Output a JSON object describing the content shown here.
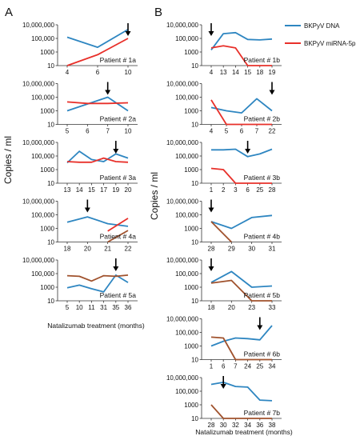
{
  "panels": [
    {
      "letter": "A",
      "ylabel": "Copies / ml",
      "xlabel": "Natalizumab treatment (months)"
    },
    {
      "letter": "B",
      "ylabel": "Copies / ml",
      "xlabel": "Natalizumab treatment (months)"
    }
  ],
  "legend": [
    {
      "name": "BKPyV DNA",
      "color": "#2e86c1"
    },
    {
      "name": "BKPyV miRNA-5p",
      "color": "#e8302a"
    }
  ],
  "colors": {
    "dna": "#2e86c1",
    "mirna": "#e8302a",
    "mirna_alt": "#a0522d",
    "arrow": "#000000"
  },
  "yticks": [
    "10,000,000",
    "100,000",
    "1000",
    "10"
  ],
  "chart_data": [
    {
      "type": "line",
      "col": 0,
      "row": 0,
      "label": "Patient # 1a",
      "categories": [
        "4",
        "6",
        "10"
      ],
      "series": [
        {
          "key": "dna",
          "name": "BKPyV DNA",
          "values": [
            150000,
            5000,
            2000000
          ]
        },
        {
          "key": "mirna",
          "name": "BKPyV miRNA-5p",
          "values": [
            10,
            400,
            100000
          ]
        }
      ],
      "arrow_index": 2,
      "ylim": [
        10,
        10000000
      ],
      "yscale": "log"
    },
    {
      "type": "line",
      "col": 0,
      "row": 1,
      "label": "Patient # 2a",
      "categories": [
        "5",
        "6",
        "7",
        "10"
      ],
      "series": [
        {
          "key": "dna",
          "name": "BKPyV DNA",
          "values": [
            1000,
            10000,
            100000,
            1000
          ]
        },
        {
          "key": "mirna",
          "name": "BKPyV miRNA-5p",
          "values": [
            20000,
            12000,
            12000,
            15000
          ]
        }
      ],
      "arrow_index": 2,
      "ylim": [
        10,
        10000000
      ],
      "yscale": "log"
    },
    {
      "type": "line",
      "col": 0,
      "row": 2,
      "label": "Patient # 3a",
      "categories": [
        "13",
        "14",
        "15",
        "17",
        "19",
        "20"
      ],
      "series": [
        {
          "key": "dna",
          "name": "BKPyV DNA",
          "values": [
            10000,
            500000,
            30000,
            15000,
            200000,
            50000
          ]
        },
        {
          "key": "mirna",
          "name": "BKPyV miRNA-5p",
          "values": [
            15000,
            12000,
            12000,
            50000,
            15000,
            12000
          ]
        }
      ],
      "arrow_index": 4,
      "ylim": [
        10,
        10000000
      ],
      "yscale": "log"
    },
    {
      "type": "line",
      "col": 0,
      "row": 3,
      "label": "Patient # 4a",
      "categories": [
        "18",
        "20",
        "21",
        "22"
      ],
      "series": [
        {
          "key": "dna",
          "name": "BKPyV DNA",
          "values": [
            8000,
            50000,
            5000,
            2000
          ]
        },
        {
          "key": "mirna_alt",
          "name": "BKPyV miRNA-5p",
          "values": [
            null,
            null,
            10,
            500
          ]
        },
        {
          "key": "mirna",
          "name": "BKPyV miRNA-5p",
          "values": [
            null,
            null,
            400,
            30000
          ]
        }
      ],
      "arrow_index": 1,
      "ylim": [
        10,
        10000000
      ],
      "yscale": "log"
    },
    {
      "type": "line",
      "col": 0,
      "row": 4,
      "label": "Patient # 5a",
      "categories": [
        "5",
        "10",
        "11",
        "31",
        "35",
        "36"
      ],
      "series": [
        {
          "key": "dna",
          "name": "BKPyV DNA",
          "values": [
            800,
            2000,
            600,
            200,
            60000,
            5000
          ]
        },
        {
          "key": "mirna_alt",
          "name": "BKPyV miRNA-5p",
          "values": [
            50000,
            40000,
            8000,
            50000,
            40000,
            60000
          ]
        }
      ],
      "arrow_index": 4,
      "ylim": [
        10,
        10000000
      ],
      "yscale": "log"
    },
    {
      "type": "line",
      "col": 1,
      "row": 0,
      "label": "Patient # 1b",
      "categories": [
        "4",
        "13",
        "14",
        "15",
        "18",
        "19"
      ],
      "series": [
        {
          "key": "dna",
          "name": "BKPyV DNA",
          "values": [
            2000,
            500000,
            700000,
            70000,
            60000,
            80000
          ]
        },
        {
          "key": "mirna",
          "name": "BKPyV miRNA-5p",
          "values": [
            4000,
            8000,
            4000,
            10,
            10,
            10
          ]
        }
      ],
      "arrow_index": 0,
      "ylim": [
        10,
        10000000
      ],
      "yscale": "log"
    },
    {
      "type": "line",
      "col": 1,
      "row": 1,
      "label": "Patient # 2b",
      "categories": [
        "4",
        "5",
        "6",
        "7",
        "22"
      ],
      "series": [
        {
          "key": "dna",
          "name": "BKPyV DNA",
          "values": [
            3000,
            1000,
            500,
            60000,
            1000
          ]
        },
        {
          "key": "mirna",
          "name": "BKPyV miRNA-5p",
          "values": [
            40000,
            10,
            10,
            10,
            10
          ]
        }
      ],
      "arrow_index": 4,
      "ylim": [
        10,
        10000000
      ],
      "yscale": "log"
    },
    {
      "type": "line",
      "col": 1,
      "row": 2,
      "label": "Patient # 3b",
      "categories": [
        "1",
        "2",
        "3",
        "6",
        "25",
        "28"
      ],
      "series": [
        {
          "key": "dna",
          "name": "BKPyV DNA",
          "values": [
            800000,
            800000,
            1000000,
            80000,
            200000,
            1000000
          ]
        },
        {
          "key": "mirna",
          "name": "BKPyV miRNA-5p",
          "values": [
            1500,
            1000,
            10,
            10,
            10,
            10
          ]
        }
      ],
      "arrow_index": 3,
      "ylim": [
        10,
        10000000
      ],
      "yscale": "log"
    },
    {
      "type": "line",
      "col": 1,
      "row": 3,
      "label": "Patient # 4b",
      "categories": [
        "28",
        "29",
        "30",
        "31"
      ],
      "series": [
        {
          "key": "dna",
          "name": "BKPyV DNA",
          "values": [
            10000,
            1000,
            40000,
            80000
          ]
        },
        {
          "key": "mirna_alt",
          "name": "BKPyV miRNA-5p",
          "values": [
            10000,
            10,
            null,
            null
          ]
        }
      ],
      "arrow_index": 0,
      "ylim": [
        10,
        10000000
      ],
      "yscale": "log"
    },
    {
      "type": "line",
      "col": 1,
      "row": 4,
      "label": "Patient # 5b",
      "categories": [
        "18",
        "20",
        "23",
        "33"
      ],
      "series": [
        {
          "key": "dna",
          "name": "BKPyV DNA",
          "values": [
            5000,
            200000,
            1000,
            1500
          ]
        },
        {
          "key": "mirna_alt",
          "name": "BKPyV miRNA-5p",
          "values": [
            4000,
            10000,
            10,
            10
          ]
        }
      ],
      "arrow_index": 0,
      "ylim": [
        10,
        10000000
      ],
      "yscale": "log"
    },
    {
      "type": "line",
      "col": 1,
      "row": 5,
      "label": "Patient # 6b",
      "categories": [
        "1",
        "6",
        "7",
        "24",
        "25",
        "34"
      ],
      "series": [
        {
          "key": "dna",
          "name": "BKPyV DNA",
          "values": [
            1000,
            5000,
            15000,
            12000,
            8000,
            1000000
          ]
        },
        {
          "key": "mirna_alt",
          "name": "BKPyV miRNA-5p",
          "values": [
            20000,
            15000,
            10,
            10,
            10,
            10
          ]
        }
      ],
      "arrow_index": 4,
      "ylim": [
        10,
        10000000
      ],
      "yscale": "log"
    },
    {
      "type": "line",
      "col": 1,
      "row": 6,
      "label": "Patient # 7b",
      "categories": [
        "28",
        "30",
        "32",
        "34",
        "36",
        "38"
      ],
      "series": [
        {
          "key": "dna",
          "name": "BKPyV DNA",
          "values": [
            1000000,
            2000000,
            500000,
            400000,
            5000,
            4000
          ]
        },
        {
          "key": "mirna_alt",
          "name": "BKPyV miRNA-5p",
          "values": [
            1000,
            10,
            10,
            10,
            10,
            10
          ]
        }
      ],
      "arrow_index": 1,
      "ylim": [
        10,
        10000000
      ],
      "yscale": "log"
    }
  ]
}
